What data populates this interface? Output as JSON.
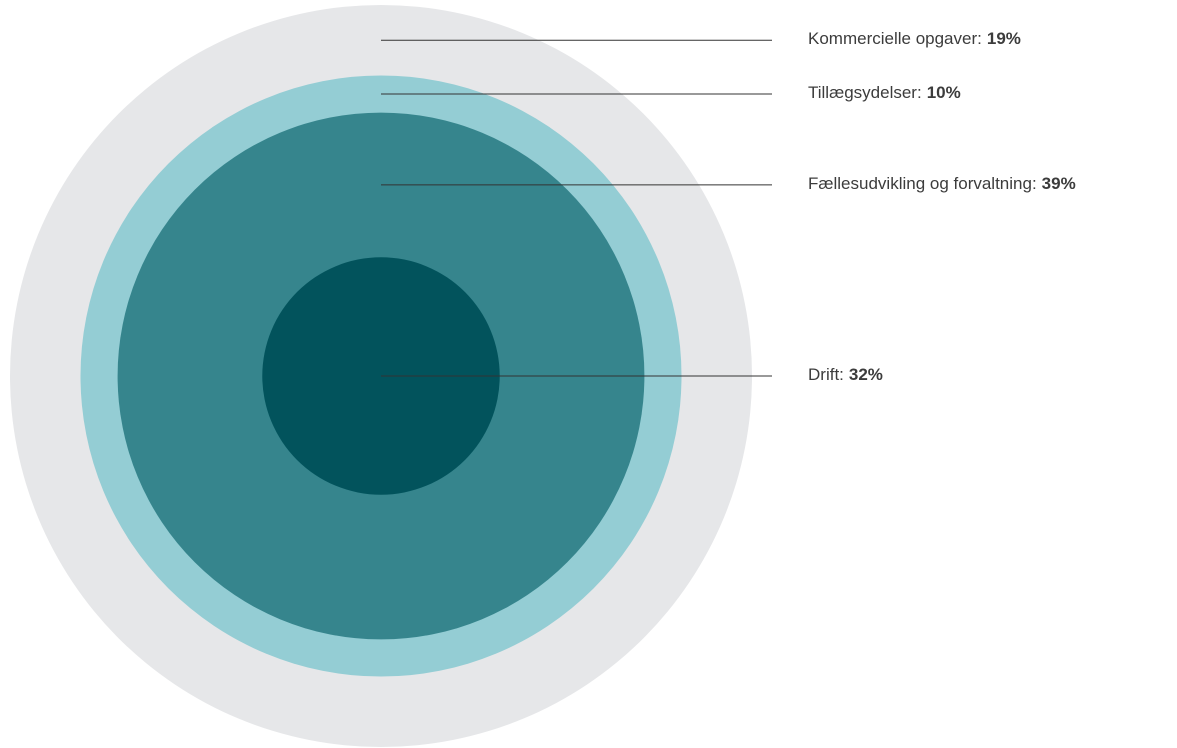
{
  "chart_data": {
    "type": "concentric",
    "categories": [
      "Kommercielle opgaver:",
      "Tillægsydelser:",
      "Fællesudvikling og forvaltning:",
      "Drift:"
    ],
    "values": [
      19,
      10,
      39,
      32
    ],
    "value_labels": [
      "19%",
      "10%",
      "39%",
      "32%"
    ],
    "colors": [
      "#e6e7e9",
      "#94cdd4",
      "#36858d",
      "#02535c"
    ]
  }
}
